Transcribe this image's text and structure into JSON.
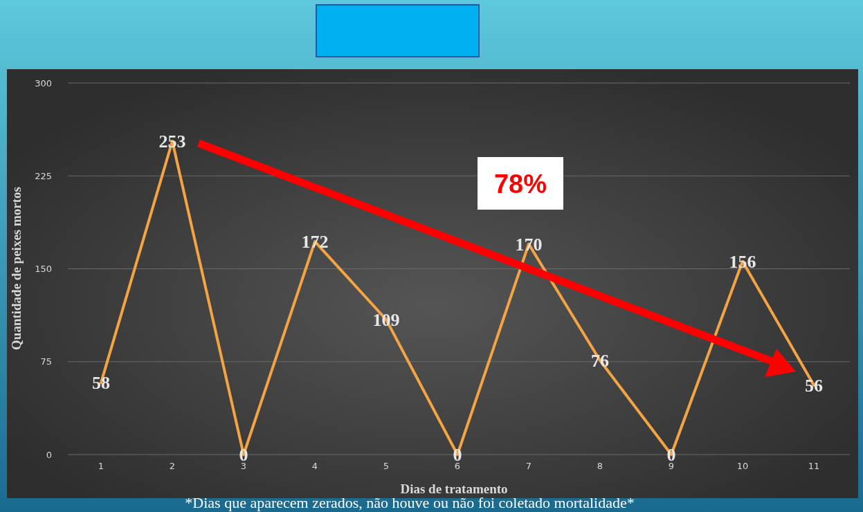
{
  "chart_data": {
    "type": "line",
    "xlabel": "Dias de tratamento",
    "ylabel": "Quantidade de peixes mortos",
    "categories": [
      "1",
      "2",
      "3",
      "4",
      "5",
      "6",
      "7",
      "8",
      "9",
      "10",
      "11"
    ],
    "values": [
      58,
      253,
      0,
      172,
      109,
      0,
      170,
      76,
      0,
      156,
      56
    ],
    "color": "#f4a442",
    "ylim": [
      0,
      300
    ],
    "yticks": [
      0,
      75,
      150,
      225,
      300
    ],
    "grid": "y",
    "data_labels": true,
    "annotations": [
      "78%",
      "*Dias que aparecem zerados, não houve ou não foi coletado mortalidade*"
    ]
  }
}
